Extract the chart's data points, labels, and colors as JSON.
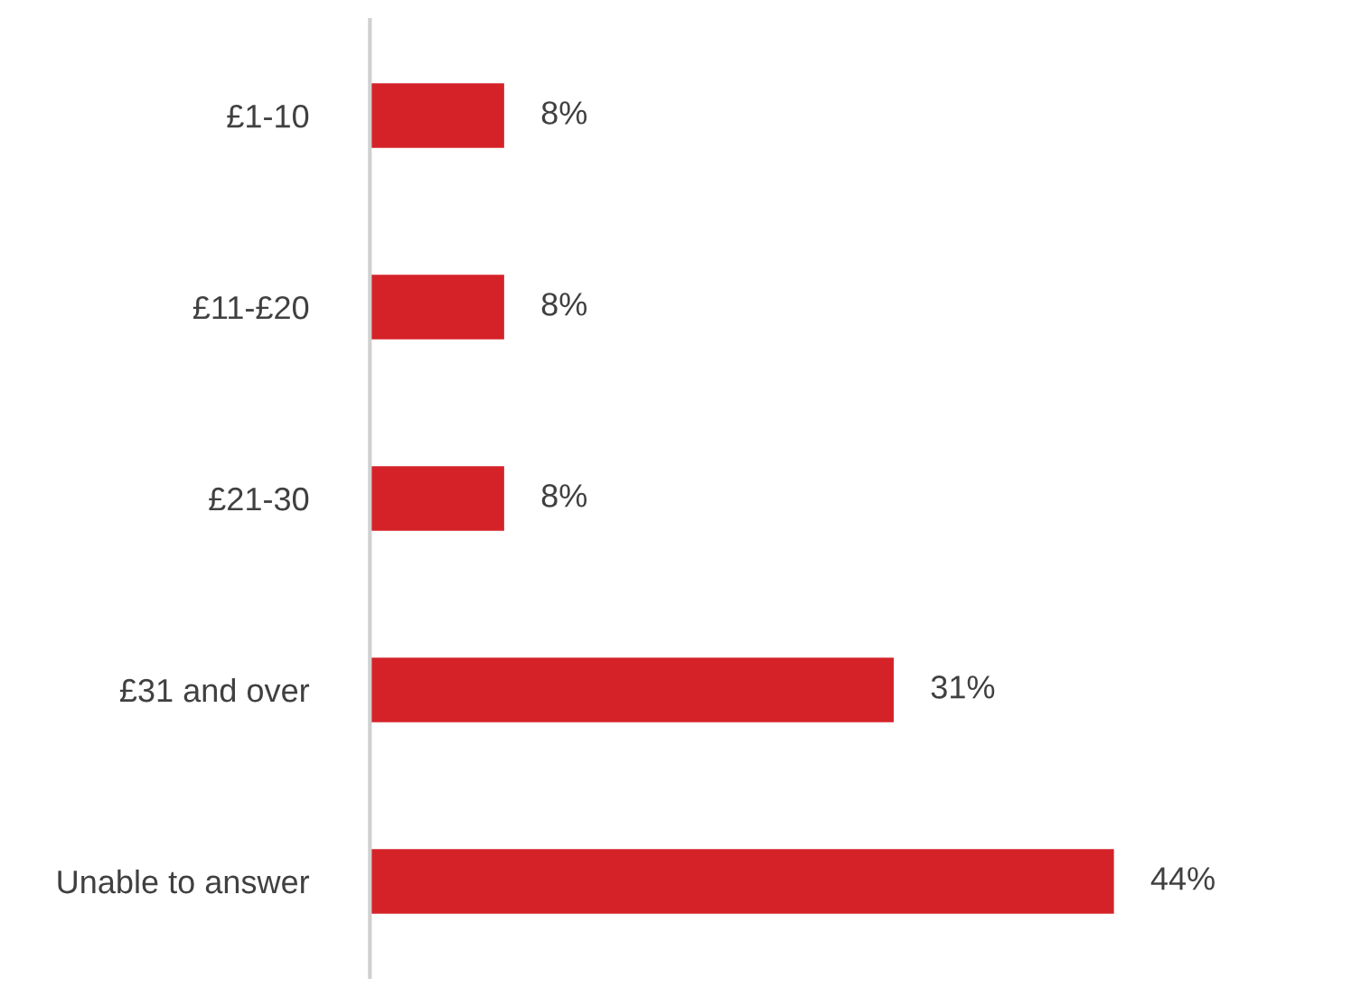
{
  "chart_data": {
    "type": "bar",
    "orientation": "horizontal",
    "categories": [
      "£1-10",
      "£11-£20",
      "£21-30",
      "£31 and over",
      "Unable to answer"
    ],
    "values": [
      8,
      8,
      8,
      31,
      44
    ],
    "value_labels": [
      "8%",
      "8%",
      "8%",
      "31%",
      "44%"
    ],
    "color": "#d52229",
    "grid": false,
    "legend": false
  }
}
